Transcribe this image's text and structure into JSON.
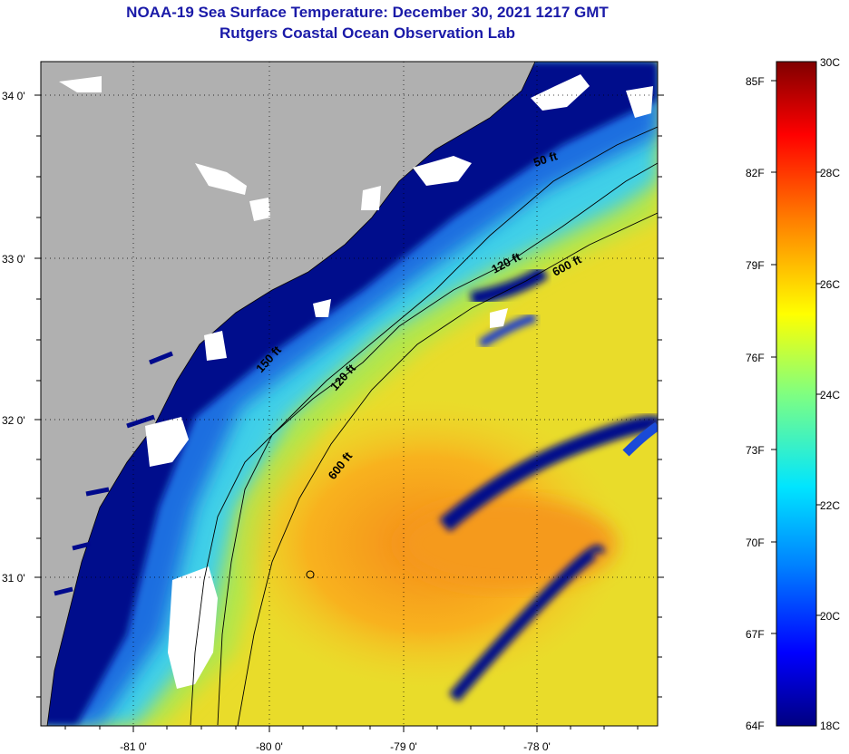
{
  "header": {
    "title": "NOAA-19 Sea Surface Temperature:  December 30, 2021 1217 GMT",
    "subtitle": "Rutgers Coastal Ocean Observation Lab"
  },
  "axes": {
    "lat_labels": [
      "34 0'",
      "33 0'",
      "32 0'",
      "31 0'"
    ],
    "lon_labels": [
      "-81 0'",
      "-80 0'",
      "-79 0'",
      "-78 0'"
    ]
  },
  "contours": {
    "c50": "50 ft",
    "c120a": "120 ft",
    "c120b": "120 ft",
    "c150": "150 ft",
    "c600a": "600 ft",
    "c600b": "600 ft"
  },
  "colorbar": {
    "fahrenheit": [
      "85F",
      "82F",
      "79F",
      "76F",
      "73F",
      "70F",
      "67F",
      "64F"
    ],
    "celsius": [
      "30C",
      "28C",
      "26C",
      "24C",
      "22C",
      "20C",
      "18C"
    ]
  },
  "colors": {
    "land": "#b0b0b0",
    "cloud": "#ffffff",
    "cold": "#000a8c",
    "warm": "#f7a21a"
  }
}
